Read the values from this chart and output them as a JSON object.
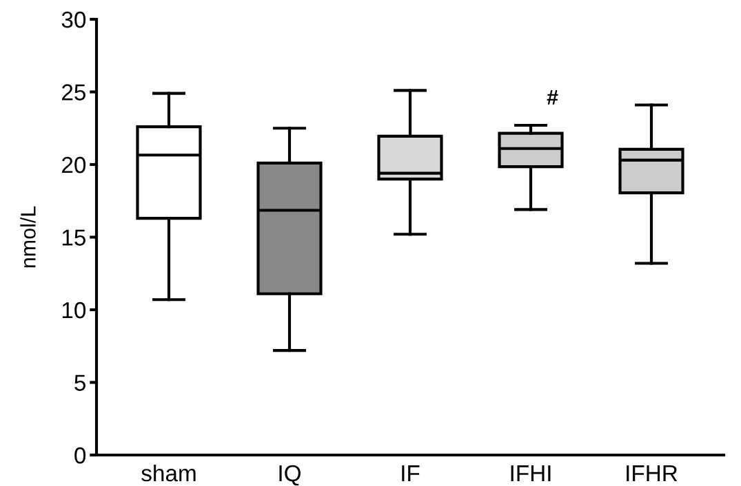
{
  "chart_data": {
    "type": "box",
    "ylabel": "nmol/L",
    "categories": [
      "sham",
      "IQ",
      "IF",
      "IFHI",
      "IFHR"
    ],
    "colors": [
      "#ffffff",
      "#888888",
      "#d9d9d9",
      "#cccccc",
      "#cccccc"
    ],
    "boxes": [
      {
        "low": 10.7,
        "q1": 16.3,
        "median": 20.65,
        "q3": 22.6,
        "high": 24.9
      },
      {
        "low": 7.2,
        "q1": 11.1,
        "median": 16.85,
        "q3": 20.1,
        "high": 22.5
      },
      {
        "low": 15.2,
        "q1": 19.0,
        "median": 19.4,
        "q3": 21.95,
        "high": 25.1
      },
      {
        "low": 16.9,
        "q1": 19.85,
        "median": 21.1,
        "q3": 22.15,
        "high": 22.7
      },
      {
        "low": 13.2,
        "q1": 18.05,
        "median": 20.3,
        "q3": 21.05,
        "high": 24.1
      }
    ],
    "ylim": [
      0,
      30
    ],
    "yticks": [
      0,
      5,
      10,
      15,
      20,
      25,
      30
    ],
    "annotations": [
      "#"
    ],
    "grid": false
  }
}
